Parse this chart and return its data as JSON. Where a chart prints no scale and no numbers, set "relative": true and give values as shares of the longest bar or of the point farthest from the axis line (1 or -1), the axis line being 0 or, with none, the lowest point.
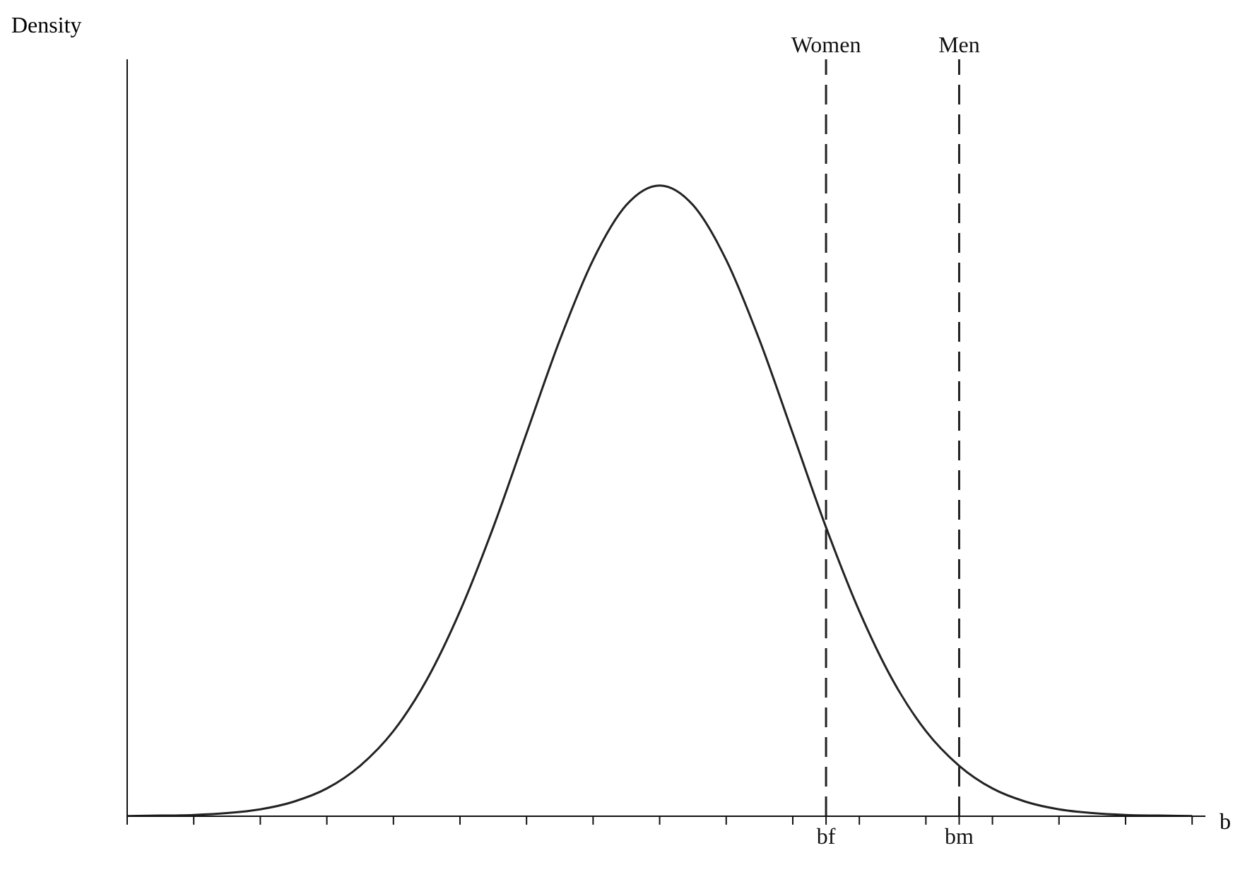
{
  "chart_data": {
    "type": "line",
    "relative": true,
    "xlabel": "b",
    "annotations": [
      "Density"
    ],
    "categories": [
      null,
      null,
      null,
      null,
      null,
      null,
      null,
      null,
      null,
      null,
      null,
      null,
      null,
      null,
      null,
      null,
      null,
      null,
      null,
      null,
      null,
      "bf",
      null,
      null,
      null,
      "bm",
      null,
      null,
      null,
      null,
      null,
      null,
      null
    ],
    "marker": "none",
    "grid": false,
    "legend": false,
    "series": [
      {
        "color": "#222222",
        "line_style": "solid",
        "values": [
          0.0003,
          0.001,
          0.002,
          0.005,
          0.011,
          0.023,
          0.044,
          0.08,
          0.135,
          0.216,
          0.325,
          0.458,
          0.607,
          0.755,
          0.882,
          0.969,
          1,
          0.969,
          0.882,
          0.755,
          0.607,
          0.458,
          0.325,
          0.216,
          0.135,
          0.08,
          0.044,
          0.023,
          0.011,
          0.005,
          0.002,
          0.001,
          0.0003
        ]
      }
    ],
    "ref_lines": [
      {
        "axis": "x",
        "value": "bf",
        "label": "Women",
        "color": "#222222",
        "line_style": "dashed"
      },
      {
        "axis": "x",
        "value": "bm",
        "label": "Men",
        "color": "#222222",
        "line_style": "dashed"
      }
    ]
  }
}
